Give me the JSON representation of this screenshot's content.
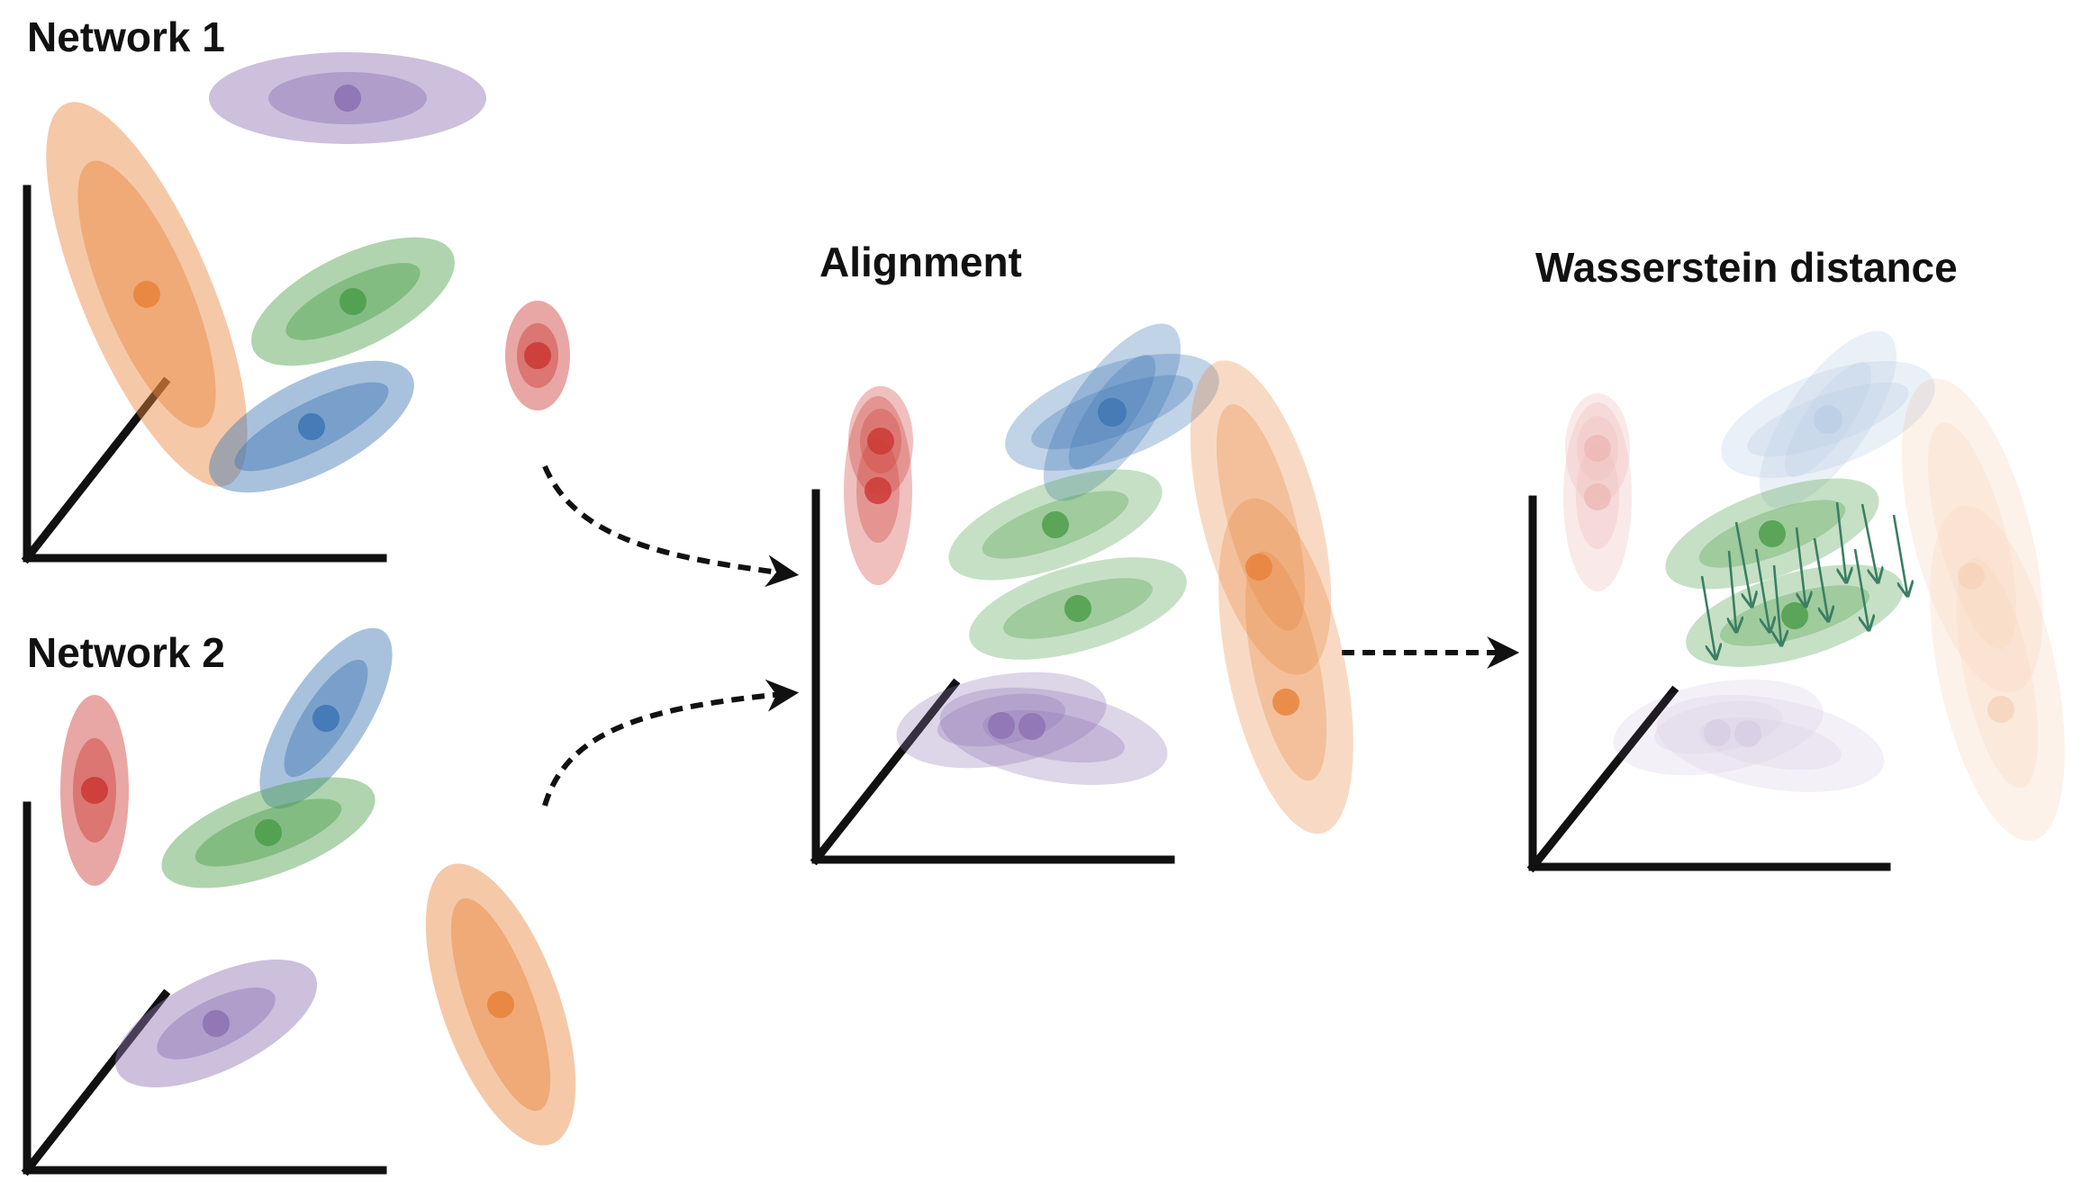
{
  "labels": {
    "network1": "Network 1",
    "network2": "Network 2",
    "alignment": "Alignment",
    "wasserstein": "Wasserstein distance"
  },
  "colors": {
    "purple": "#8e73b3",
    "orange": "#e8843d",
    "green": "#4e9f4c",
    "blue": "#3f77b4",
    "red": "#cc3b35",
    "axis": "#111111",
    "arrow_green": "#3a7f63"
  },
  "panels": [
    {
      "name": "network-1",
      "clusters": [
        "orange",
        "purple",
        "green",
        "blue",
        "red"
      ]
    },
    {
      "name": "network-2",
      "clusters": [
        "red",
        "blue",
        "green",
        "purple",
        "orange"
      ]
    },
    {
      "name": "alignment",
      "clusters": [
        "red",
        "blue",
        "green",
        "purple",
        "orange"
      ]
    },
    {
      "name": "wasserstein-distance",
      "clusters": [
        "red",
        "blue",
        "green",
        "purple",
        "orange"
      ]
    }
  ]
}
